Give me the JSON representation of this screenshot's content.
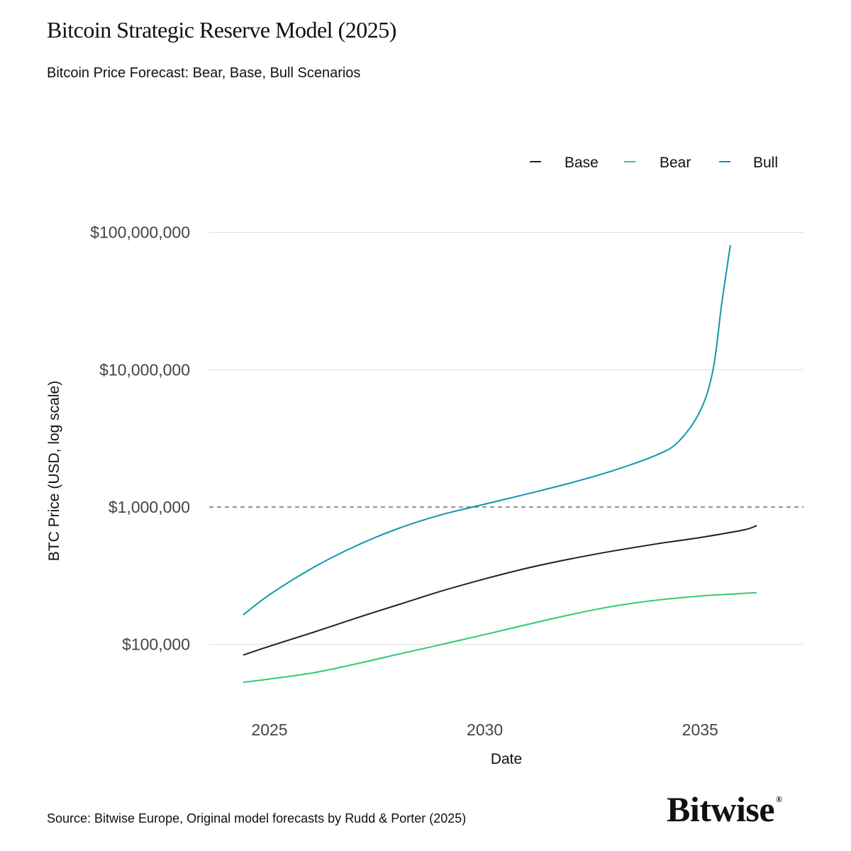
{
  "title": "Bitcoin Strategic Reserve Model (2025)",
  "subtitle": "Bitcoin Price Forecast: Bear, Base, Bull Scenarios",
  "source": "Source: Bitwise Europe, Original model forecasts by Rudd & Porter (2025)",
  "logo": {
    "text": "Bitwise",
    "mark": "®"
  },
  "colors": {
    "base": "#222222",
    "bear": "#2ecc71",
    "bull": "#0f97ad",
    "grid": "#dddddd",
    "reference": "#555555"
  },
  "chart_data": {
    "type": "line",
    "title": "Bitcoin Price Forecast: Bear, Base, Bull Scenarios",
    "xlabel": "Date",
    "ylabel": "BTC Price (USD, log scale)",
    "yscale": "log",
    "xlim": [
      2023.6,
      2037.4
    ],
    "ylim": [
      30000,
      160000000
    ],
    "xticks": [
      2025,
      2030,
      2035
    ],
    "xtick_labels": [
      "2025",
      "2030",
      "2035"
    ],
    "yticks": [
      100000,
      1000000,
      10000000,
      100000000
    ],
    "ytick_labels": [
      "$100,000",
      "$1,000,000",
      "$10,000,000",
      "$100,000,000"
    ],
    "reference_line": {
      "y": 1000000,
      "style": "dashed"
    },
    "legend": {
      "position": "top-right",
      "entries": [
        "Base",
        "Bear",
        "Bull"
      ]
    },
    "series": [
      {
        "name": "Base",
        "x": [
          2024.4,
          2025,
          2026,
          2027,
          2028,
          2029,
          2030,
          2031,
          2032,
          2033,
          2034,
          2035,
          2036,
          2036.3
        ],
        "values": [
          84000,
          97000,
          122000,
          155000,
          195000,
          245000,
          300000,
          360000,
          420000,
          480000,
          540000,
          600000,
          680000,
          730000
        ]
      },
      {
        "name": "Bear",
        "x": [
          2024.4,
          2025,
          2026,
          2027,
          2028,
          2029,
          2030,
          2031,
          2032,
          2033,
          2034,
          2035,
          2036,
          2036.3
        ],
        "values": [
          53000,
          56000,
          62000,
          72000,
          85000,
          100000,
          118000,
          140000,
          165000,
          190000,
          210000,
          225000,
          235000,
          238000
        ]
      },
      {
        "name": "Bull",
        "x": [
          2024.4,
          2025,
          2026,
          2027,
          2028,
          2029,
          2030,
          2031,
          2032,
          2033,
          2034,
          2034.5,
          2035,
          2035.3,
          2035.5,
          2035.7
        ],
        "values": [
          165000,
          230000,
          360000,
          520000,
          700000,
          880000,
          1050000,
          1250000,
          1500000,
          1850000,
          2400000,
          3000000,
          5000000,
          10000000,
          30000000,
          80000000
        ]
      }
    ]
  }
}
